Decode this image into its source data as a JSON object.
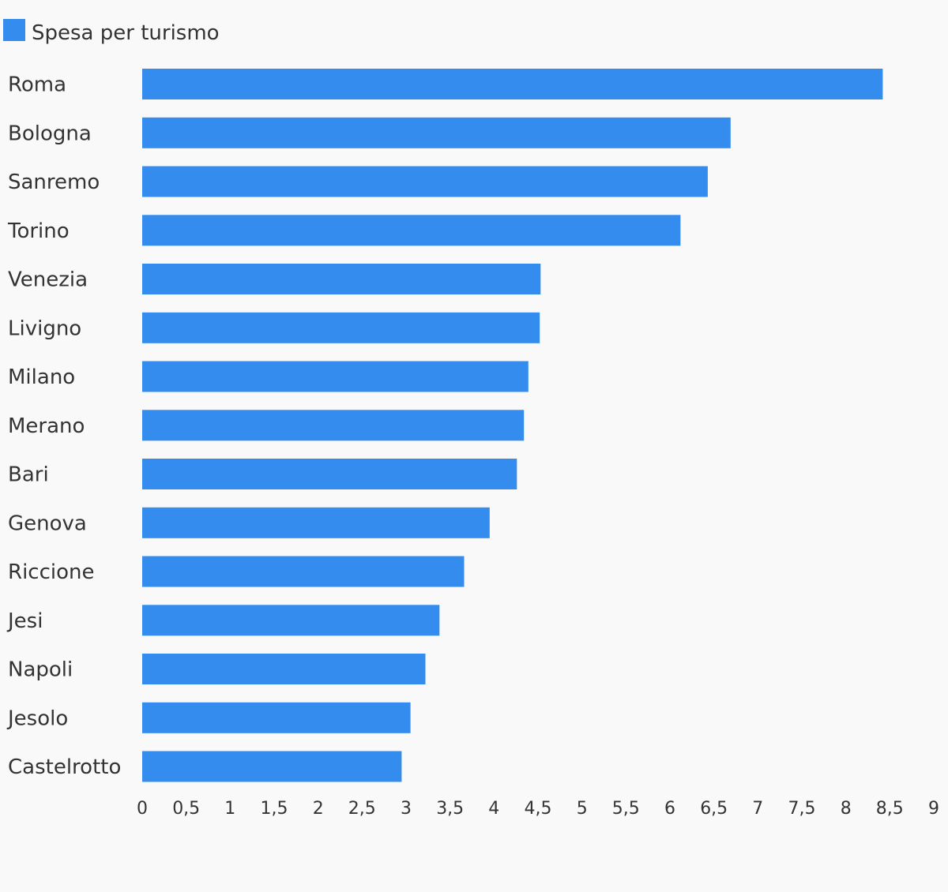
{
  "chart_data": {
    "type": "bar",
    "orientation": "horizontal",
    "categories": [
      "Roma",
      "Bologna",
      "Sanremo",
      "Torino",
      "Venezia",
      "Livigno",
      "Milano",
      "Merano",
      "Bari",
      "Genova",
      "Riccione",
      "Jesi",
      "Napoli",
      "Jesolo",
      "Castelrotto"
    ],
    "series": [
      {
        "name": "Spesa per turismo",
        "color": "#338cee",
        "values": [
          8.42,
          6.69,
          6.43,
          6.12,
          4.53,
          4.52,
          4.39,
          4.34,
          4.26,
          3.95,
          3.66,
          3.38,
          3.22,
          3.05,
          2.95
        ]
      }
    ],
    "xlim": [
      0,
      9
    ],
    "x_ticks": [
      "0",
      "0,5",
      "1",
      "1,5",
      "2",
      "2,5",
      "3",
      "3,5",
      "4",
      "4,5",
      "5",
      "5,5",
      "6",
      "6,5",
      "7",
      "7,5",
      "8",
      "8,5",
      "9"
    ],
    "grid": false,
    "legend_position": "top-left",
    "title": "",
    "xlabel": "",
    "ylabel": ""
  }
}
